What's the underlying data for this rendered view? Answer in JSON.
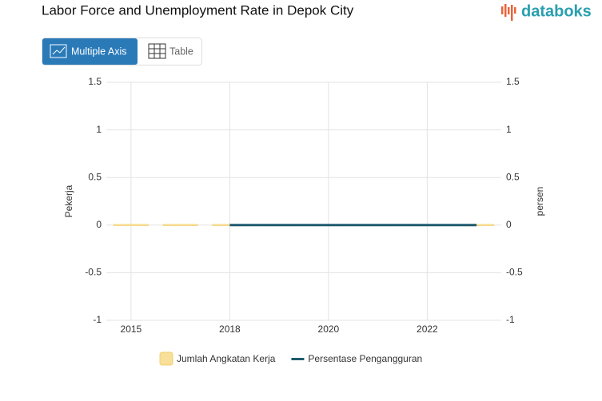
{
  "ui": {
    "logo": "databoks",
    "buttons": [
      "Multiple Axis",
      "Table"
    ]
  },
  "chart_data": {
    "type": "bar-line",
    "title": "Labor Force and Unemployment Rate in Depok City",
    "categories": [
      "2015",
      null,
      "2018",
      null,
      "2020",
      null,
      "2022",
      null
    ],
    "series": [
      {
        "name": "Jumlah Angkatan Kerja",
        "type": "bar",
        "color": "#f8df9a",
        "values": [
          0,
          0,
          0,
          0,
          0,
          0,
          0,
          0
        ]
      },
      {
        "name": "Persentase Pengangguran",
        "type": "line",
        "axis": "y2",
        "color": "#1f5a6e",
        "values": [
          null,
          null,
          0,
          0,
          0,
          0,
          0,
          0
        ]
      }
    ],
    "ylabel": "Pekerja",
    "y2label": "persen",
    "ylim": [
      -1,
      1.5
    ],
    "yticks": [
      -1,
      -0.5,
      0,
      0.5,
      1,
      1.5
    ],
    "y2lim": [
      -1,
      1.5
    ],
    "y2ticks": [
      -1,
      -0.5,
      0,
      0.5,
      1,
      1.5
    ],
    "grid": true
  }
}
